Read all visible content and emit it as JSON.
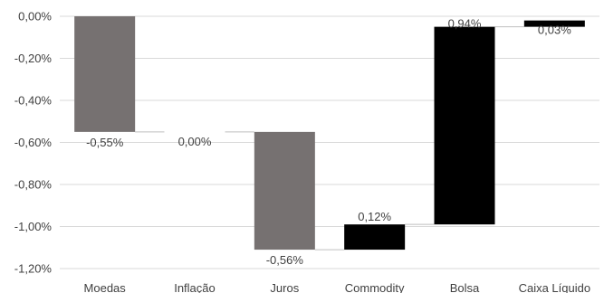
{
  "chart_data": {
    "type": "bar",
    "subtype": "waterfall",
    "categories": [
      "Moedas",
      "Inflação",
      "Juros",
      "Commodity",
      "Bolsa",
      "Caixa Líquido"
    ],
    "values": [
      -0.55,
      0.0,
      -0.56,
      0.12,
      0.94,
      0.03
    ],
    "data_labels": [
      "-0,55%",
      "0,00%",
      "-0,56%",
      "0,12%",
      "0,94%",
      "0,03%"
    ],
    "bar_colors": [
      "#767171",
      "#767171",
      "#767171",
      "#000000",
      "#000000",
      "#000000"
    ],
    "ylim": [
      -1.2,
      0.0
    ],
    "yticks": [
      0.0,
      -0.2,
      -0.4,
      -0.6,
      -0.8,
      -1.0,
      -1.2
    ],
    "ytick_labels": [
      "0,00%",
      "-0,20%",
      "-0,40%",
      "-0,60%",
      "-0,80%",
      "-1,00%",
      "-1,20%"
    ],
    "grid": true,
    "legend": "none",
    "title": "",
    "xlabel": "",
    "ylabel": ""
  }
}
